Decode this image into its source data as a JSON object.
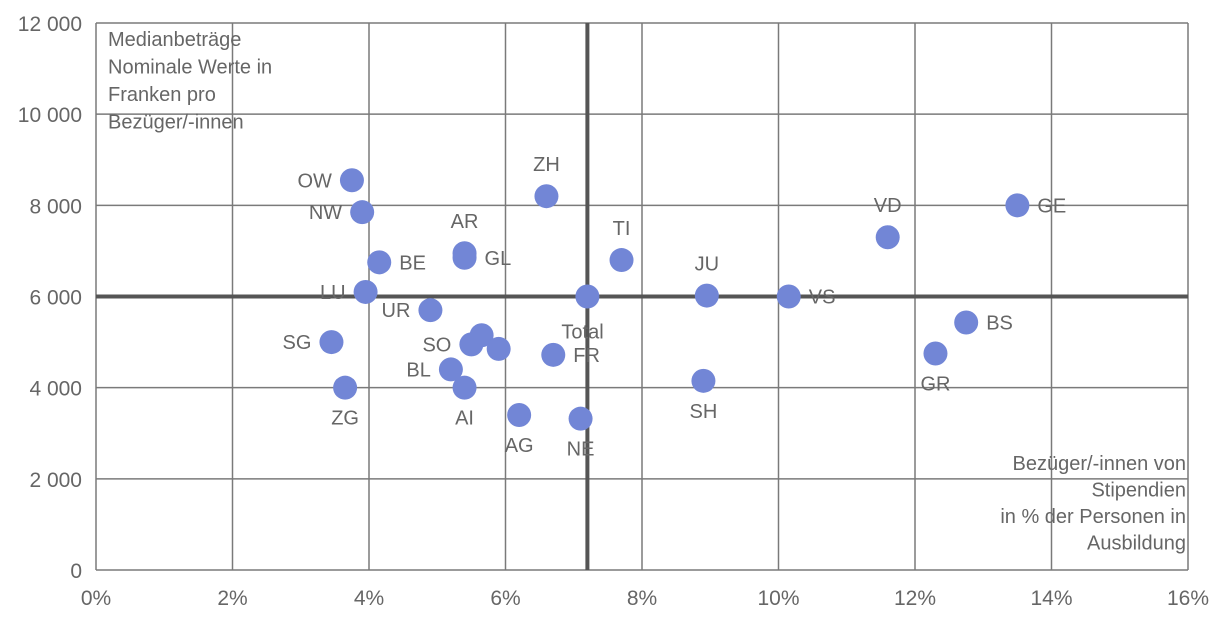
{
  "chart_data": {
    "type": "scatter",
    "title": "",
    "ylabel_lines": [
      "Medianbeträge",
      "Nominale Werte in",
      "Franken pro",
      "Bezüger/-innen"
    ],
    "xlabel_lines": [
      "Bezüger/-innen von",
      "Stipendien",
      "in % der Personen in",
      "Ausbildung"
    ],
    "xlim": [
      0,
      16
    ],
    "ylim": [
      0,
      12000
    ],
    "xticks": [
      0,
      2,
      4,
      6,
      8,
      10,
      12,
      14,
      16
    ],
    "yticks": [
      0,
      2000,
      4000,
      6000,
      8000,
      10000,
      12000
    ],
    "xtick_labels": [
      "0%",
      "2%",
      "4%",
      "6%",
      "8%",
      "10%",
      "12%",
      "14%",
      "16%"
    ],
    "ytick_labels": [
      "0",
      "2 000",
      "4 000",
      "6 000",
      "8 000",
      "10 000",
      "12 000"
    ],
    "grid": true,
    "reference_lines": {
      "x": 7.2,
      "y": 6000
    },
    "point_color": "#7286d6",
    "points": [
      {
        "label": "OW",
        "x": 3.75,
        "y": 8550,
        "pos": "left"
      },
      {
        "label": "NW",
        "x": 3.9,
        "y": 7850,
        "pos": "left"
      },
      {
        "label": "ZH",
        "x": 6.6,
        "y": 8200,
        "pos": "top"
      },
      {
        "label": "AR",
        "x": 5.4,
        "y": 6950,
        "pos": "top"
      },
      {
        "label": "GL",
        "x": 5.4,
        "y": 6850,
        "pos": "right"
      },
      {
        "label": "BE",
        "x": 4.15,
        "y": 6750,
        "pos": "right"
      },
      {
        "label": "TI",
        "x": 7.7,
        "y": 6800,
        "pos": "top"
      },
      {
        "label": "JU",
        "x": 8.95,
        "y": 6020,
        "pos": "top"
      },
      {
        "label": "VS",
        "x": 10.15,
        "y": 6000,
        "pos": "right"
      },
      {
        "label": "VD",
        "x": 11.6,
        "y": 7300,
        "pos": "top"
      },
      {
        "label": "GE",
        "x": 13.5,
        "y": 8000,
        "pos": "right"
      },
      {
        "label": "LU",
        "x": 3.95,
        "y": 6100,
        "pos": "left"
      },
      {
        "label": "UR",
        "x": 4.9,
        "y": 5700,
        "pos": "left"
      },
      {
        "label": "Total",
        "x": 7.2,
        "y": 6000,
        "pos": "below"
      },
      {
        "label": "SG",
        "x": 3.45,
        "y": 5000,
        "pos": "left"
      },
      {
        "label": "SO",
        "x": 5.5,
        "y": 4950,
        "pos": "left"
      },
      {
        "label": "",
        "x": 5.65,
        "y": 5150,
        "pos": "none"
      },
      {
        "label": "",
        "x": 5.9,
        "y": 4850,
        "pos": "none"
      },
      {
        "label": "FR",
        "x": 6.7,
        "y": 4720,
        "pos": "right"
      },
      {
        "label": "BL",
        "x": 5.2,
        "y": 4400,
        "pos": "left"
      },
      {
        "label": "AI",
        "x": 5.4,
        "y": 4000,
        "pos": "bottom"
      },
      {
        "label": "ZG",
        "x": 3.65,
        "y": 4000,
        "pos": "bottom"
      },
      {
        "label": "AG",
        "x": 6.2,
        "y": 3400,
        "pos": "bottom"
      },
      {
        "label": "NE",
        "x": 7.1,
        "y": 3320,
        "pos": "bottom"
      },
      {
        "label": "SH",
        "x": 8.9,
        "y": 4150,
        "pos": "bottom"
      },
      {
        "label": "BS",
        "x": 12.75,
        "y": 5430,
        "pos": "right"
      },
      {
        "label": "GR",
        "x": 12.3,
        "y": 4750,
        "pos": "bottom"
      }
    ]
  }
}
